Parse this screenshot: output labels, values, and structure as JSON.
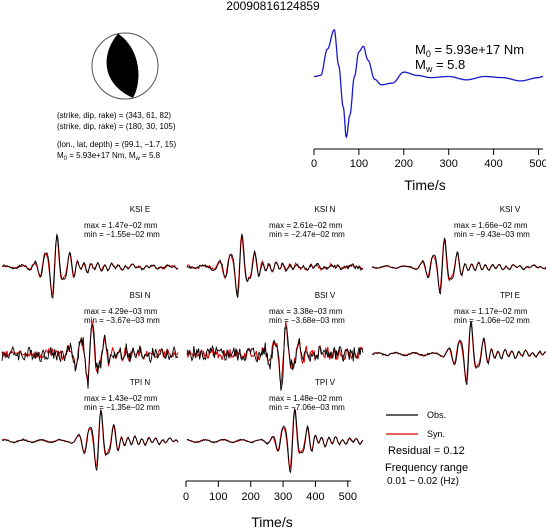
{
  "event_id": "20090816124859",
  "mechanism": {
    "plane1": "(strike, dip, rake) = (343, 61, 82)",
    "plane2": "(strike, dip, rake) = (180, 30, 105)",
    "location": "(lon., lat, depth) = (99.1, −1.7, 15)",
    "moment_line": "Nm, M",
    "moment_pre": "M",
    "moment_mid": " = 5.93e+17 Nm, M",
    "moment_post": " = 5.8"
  },
  "stf_labels": {
    "m0_main": "M",
    "m0_sub": "0",
    "m0_value": " = 5.93e+17 Nm",
    "mw_main": "M",
    "mw_sub": "w",
    "mw_value": " = 5.8"
  },
  "legend": {
    "obs": "Obs.",
    "syn": "Syn.",
    "residual": "Residual = 0.12",
    "freq_title": "Frequency range",
    "freq_value": "0.01 − 0.02 (Hz)"
  },
  "colors": {
    "obs": "#000000",
    "syn": "#dd0000",
    "stf": "#1a1acc",
    "beachball_fill": "#000000"
  },
  "chart_data": [
    {
      "type": "line",
      "name": "source-time-function",
      "xlabel": "Time/s",
      "xlim": [
        0,
        510
      ],
      "ticks": [
        0,
        100,
        200,
        300,
        400,
        500
      ],
      "x": [
        0,
        15,
        30,
        45,
        55,
        65,
        72,
        80,
        90,
        100,
        110,
        120,
        135,
        150,
        175,
        200,
        230,
        260,
        300,
        340,
        380,
        420,
        460,
        500,
        510
      ],
      "values": [
        0.1,
        0.12,
        0.6,
        0.95,
        0.3,
        -0.45,
        -1.0,
        -0.6,
        0.1,
        0.55,
        0.65,
        0.4,
        0.05,
        -0.05,
        -0.02,
        0.18,
        0.12,
        0.08,
        0.1,
        0.04,
        0.1,
        0.08,
        0.02,
        0.08,
        0.1
      ]
    },
    {
      "type": "line",
      "name": "waveforms",
      "xlabel": "Time/s",
      "xlim": [
        0,
        510
      ],
      "ticks": [
        0,
        100,
        200,
        300,
        400,
        500
      ],
      "series_names": [
        "Obs.",
        "Syn."
      ],
      "stations": [
        {
          "label": "KSI E",
          "max": "max = 1.47e−02 mm",
          "min": "min = −1.55e−02 mm",
          "col": 0,
          "row": 0,
          "shape": "mix",
          "seed": 1,
          "amp": 1.0,
          "center": 0.3,
          "noise": 0.08
        },
        {
          "label": "KSI N",
          "max": "max = 2.61e−02 mm",
          "min": "min = −2.47e−02 mm",
          "col": 1,
          "row": 0,
          "shape": "burst",
          "seed": 2,
          "amp": 1.0,
          "center": 0.3,
          "noise": 0.12
        },
        {
          "label": "KSI V",
          "max": "max = 1.66e−02 mm",
          "min": "min = −9.43e−03 mm",
          "col": 2,
          "row": 0,
          "shape": "burst",
          "seed": 3,
          "amp": 0.9,
          "center": 0.4,
          "noise": 0.05
        },
        {
          "label": "BSI N",
          "max": "max = 4.29e−03 mm",
          "min": "min = −3.67e−03 mm",
          "col": 0,
          "row": 1,
          "shape": "noisy",
          "seed": 4,
          "amp": 1.0,
          "center": 0.5,
          "noise": 0.35
        },
        {
          "label": "BSI V",
          "max": "max = 3.38e−03 mm",
          "min": "min = −3.68e−03 mm",
          "col": 1,
          "row": 1,
          "shape": "noisy",
          "seed": 5,
          "amp": 1.0,
          "center": 0.55,
          "noise": 0.4
        },
        {
          "label": "TPI E",
          "max": "max = 1.17e−02 mm",
          "min": "min = −1.06e−02 mm",
          "col": 2,
          "row": 1,
          "shape": "burst",
          "seed": 6,
          "amp": 1.0,
          "center": 0.55,
          "noise": 0.06
        },
        {
          "label": "TPI N",
          "max": "max = 1.43e−02 mm",
          "min": "min = −1.35e−02 mm",
          "col": 0,
          "row": 2,
          "shape": "burst",
          "seed": 7,
          "amp": 1.0,
          "center": 0.55,
          "noise": 0.05
        },
        {
          "label": "TPI V",
          "max": "max = 1.48e−02 mm",
          "min": "min = −7.06e−03 mm",
          "col": 1,
          "row": 2,
          "shape": "burst",
          "seed": 8,
          "amp": 1.0,
          "center": 0.6,
          "noise": 0.05
        }
      ]
    }
  ]
}
